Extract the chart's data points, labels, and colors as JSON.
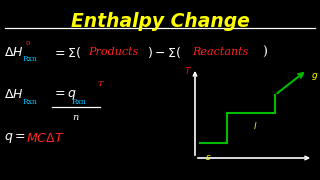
{
  "title": "Enthalpy Change",
  "title_color": "#FFFF00",
  "bg_color": "#000000",
  "line_color": "#FFFFFF",
  "graph_axes_color": "#FFFFFF",
  "graph_line_color": "#00BB00",
  "label_s": "s",
  "label_l": "l",
  "label_g": "g",
  "label_color": "#FFFF00",
  "label_T": "T",
  "label_T_color": "#FF0000",
  "cyan": "#00BFFF",
  "red": "#FF2222",
  "white": "#FFFFFF"
}
